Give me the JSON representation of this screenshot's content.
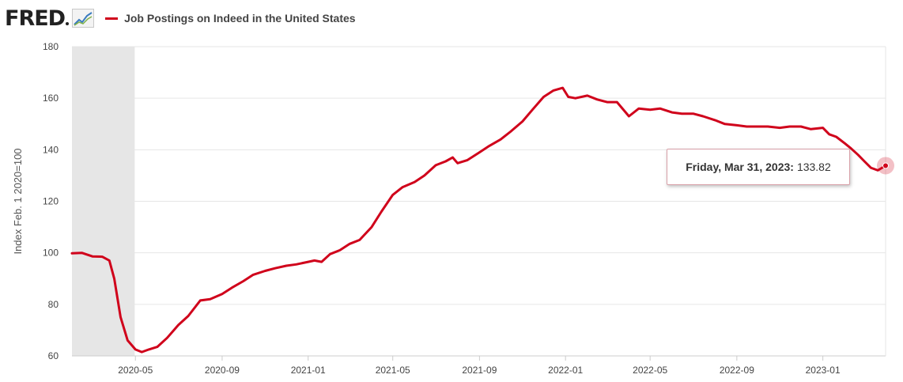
{
  "header": {
    "logo_text": "FRED",
    "logo_icon": "fred-graph-icon",
    "series_title": "Job Postings on Indeed in the United States"
  },
  "colors": {
    "series": "#d0021b",
    "recession": "#e6e6e6",
    "grid": "#e6e6e6"
  },
  "tooltip": {
    "date_label": "Friday, Mar 31, 2023:",
    "value_label": "133.82"
  },
  "chart_data": {
    "type": "line",
    "title": "Job Postings on Indeed in the United States",
    "ylabel": "Index Feb. 1 2020=100",
    "xlabel": "",
    "ylim": [
      60,
      180
    ],
    "yticks": [
      60,
      80,
      100,
      120,
      140,
      160,
      180
    ],
    "xlim": [
      "2020-02-01",
      "2023-03-31"
    ],
    "xticks": [
      "2020-05",
      "2020-09",
      "2021-01",
      "2021-05",
      "2021-09",
      "2022-01",
      "2022-05",
      "2022-09",
      "2023-01"
    ],
    "grid": true,
    "recession_shading": {
      "start": "2020-02-01",
      "end": "2020-04-30"
    },
    "series": [
      {
        "name": "Job Postings on Indeed in the United States",
        "x": [
          "2020-02-01",
          "2020-02-15",
          "2020-03-01",
          "2020-03-15",
          "2020-03-25",
          "2020-04-01",
          "2020-04-10",
          "2020-04-20",
          "2020-05-01",
          "2020-05-10",
          "2020-05-20",
          "2020-06-01",
          "2020-06-15",
          "2020-07-01",
          "2020-07-15",
          "2020-08-01",
          "2020-08-15",
          "2020-09-01",
          "2020-09-15",
          "2020-10-01",
          "2020-10-15",
          "2020-11-01",
          "2020-11-15",
          "2020-12-01",
          "2020-12-15",
          "2021-01-01",
          "2021-01-10",
          "2021-01-20",
          "2021-02-01",
          "2021-02-15",
          "2021-03-01",
          "2021-03-15",
          "2021-04-01",
          "2021-04-15",
          "2021-05-01",
          "2021-05-15",
          "2021-06-01",
          "2021-06-15",
          "2021-07-01",
          "2021-07-15",
          "2021-07-25",
          "2021-08-01",
          "2021-08-15",
          "2021-09-01",
          "2021-09-15",
          "2021-10-01",
          "2021-10-15",
          "2021-11-01",
          "2021-11-15",
          "2021-12-01",
          "2021-12-15",
          "2021-12-28",
          "2022-01-05",
          "2022-01-15",
          "2022-02-01",
          "2022-02-15",
          "2022-03-01",
          "2022-03-15",
          "2022-04-01",
          "2022-04-15",
          "2022-05-01",
          "2022-05-15",
          "2022-06-01",
          "2022-06-15",
          "2022-07-01",
          "2022-07-15",
          "2022-08-01",
          "2022-08-15",
          "2022-09-01",
          "2022-09-15",
          "2022-10-01",
          "2022-10-15",
          "2022-11-01",
          "2022-11-15",
          "2022-12-01",
          "2022-12-15",
          "2023-01-01",
          "2023-01-10",
          "2023-01-20",
          "2023-02-01",
          "2023-02-10",
          "2023-02-20",
          "2023-03-01",
          "2023-03-10",
          "2023-03-20",
          "2023-03-31"
        ],
        "values": [
          99.8,
          100.0,
          98.6,
          98.5,
          97.0,
          90.0,
          75.0,
          66.0,
          62.5,
          61.5,
          62.5,
          63.5,
          67.0,
          72.0,
          75.5,
          81.5,
          82.0,
          84.0,
          86.5,
          89.0,
          91.5,
          93.0,
          94.0,
          95.0,
          95.5,
          96.5,
          97.0,
          96.5,
          99.5,
          101.0,
          103.5,
          105.0,
          110.0,
          116.0,
          122.5,
          125.5,
          127.5,
          130.0,
          134.0,
          135.5,
          137.0,
          134.8,
          136.0,
          139.0,
          141.5,
          144.0,
          147.0,
          151.0,
          155.5,
          160.5,
          163.0,
          164.0,
          160.5,
          160.0,
          161.0,
          159.5,
          158.5,
          158.5,
          153.0,
          156.0,
          155.5,
          156.0,
          154.5,
          154.0,
          154.0,
          153.0,
          151.5,
          150.0,
          149.5,
          149.0,
          149.0,
          149.0,
          148.5,
          149.0,
          149.0,
          148.0,
          148.5,
          146.0,
          145.0,
          142.5,
          140.5,
          138.0,
          135.5,
          133.0,
          132.0,
          133.82
        ]
      }
    ]
  }
}
